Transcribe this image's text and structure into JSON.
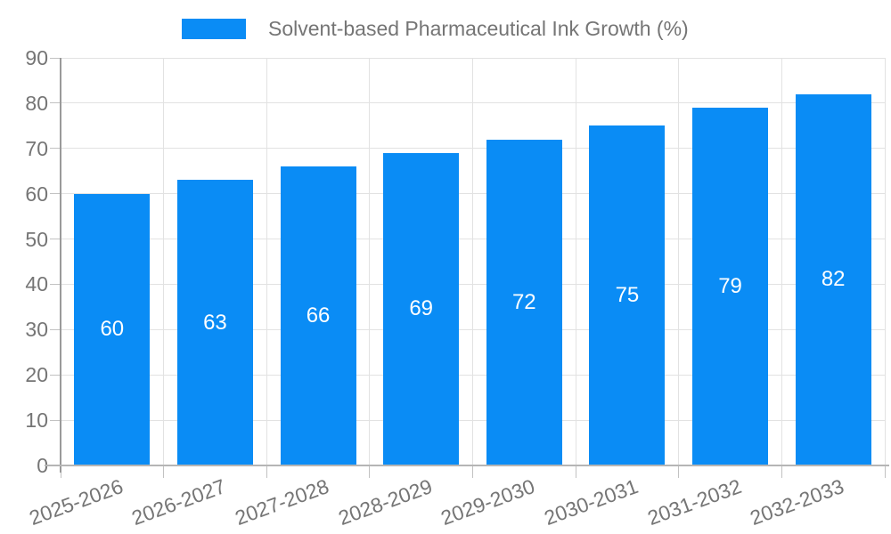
{
  "chart_data": {
    "type": "bar",
    "title": "Solvent-based Pharmaceutical Ink Growth (%)",
    "categories": [
      "2025-2026",
      "2026-2027",
      "2027-2028",
      "2028-2029",
      "2029-2030",
      "2030-2031",
      "2031-2032",
      "2032-2033"
    ],
    "values": [
      60,
      63,
      66,
      69,
      72,
      75,
      79,
      82
    ],
    "xlabel": "",
    "ylabel": "",
    "ylim": [
      0,
      90
    ],
    "y_ticks": [
      0,
      10,
      20,
      30,
      40,
      50,
      60,
      70,
      80,
      90
    ],
    "grid": true,
    "legend_position": "top-center",
    "x_label_rotation_deg": -20,
    "value_labels": "inside-center",
    "colors": {
      "bar": "#0a8cf5",
      "bar_value_label": "#ffffff",
      "axis_text": "#757575",
      "gridline": "#e2e2e2",
      "tick": "#c2c2c2",
      "y_axis_line": "#9a9a9a",
      "x_axis_line": "#b5b5b5",
      "background": "#ffffff"
    }
  }
}
